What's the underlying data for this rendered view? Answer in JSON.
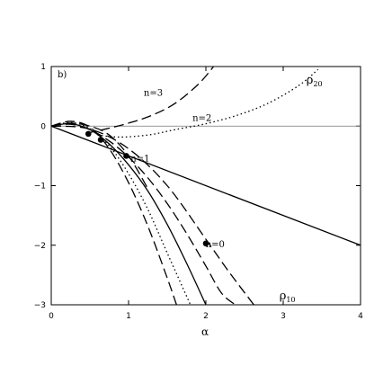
{
  "chart_data": {
    "type": "line",
    "panel_label": "b)",
    "xlabel": "α",
    "ylabel": "",
    "xlim": [
      0,
      4
    ],
    "ylim": [
      -3,
      1
    ],
    "x_ticks": [
      0,
      1,
      2,
      3,
      4
    ],
    "y_ticks": [
      1,
      0,
      -1,
      -2,
      -3
    ],
    "grid": false,
    "annotations": [
      {
        "text": "n=3",
        "x": 1.32,
        "y": 0.57
      },
      {
        "text": "n=2",
        "x": 1.95,
        "y": 0.15
      },
      {
        "text": "n=1",
        "x": 1.15,
        "y": -0.53
      },
      {
        "text": "n=0",
        "x": 2.12,
        "y": -1.97
      }
    ],
    "region_labels": [
      {
        "main": "ρ",
        "sub": "20",
        "x": 3.3,
        "y": 0.77
      },
      {
        "main": "ρ",
        "sub": "10",
        "x": 2.95,
        "y": -2.85
      }
    ],
    "markers": [
      {
        "x": 0.48,
        "y": -0.13
      },
      {
        "x": 0.64,
        "y": -0.23
      },
      {
        "x": 0.97,
        "y": -0.5
      },
      {
        "x": 2.0,
        "y": -1.97
      }
    ],
    "series": [
      {
        "style": "solid",
        "x": [
          0,
          4
        ],
        "y": [
          0,
          -2
        ]
      },
      {
        "style": "solid",
        "x": [
          0,
          0.25,
          0.5,
          0.75,
          1.0,
          1.25,
          1.5,
          1.75,
          2.0
        ],
        "y": [
          0,
          0.04,
          -0.06,
          -0.3,
          -0.65,
          -1.09,
          -1.65,
          -2.3,
          -3.0
        ]
      },
      {
        "style": "dotted",
        "x": [
          0,
          0.25,
          0.5,
          0.75,
          1.0,
          1.25,
          1.5,
          1.8
        ],
        "y": [
          0,
          0.06,
          -0.04,
          -0.33,
          -0.8,
          -1.4,
          -2.13,
          -3.0
        ]
      },
      {
        "style": "dashed",
        "x": [
          0,
          0.25,
          0.5,
          0.75,
          1.0,
          1.25,
          1.5,
          1.62
        ],
        "y": [
          0,
          0.08,
          -0.02,
          -0.38,
          -0.95,
          -1.68,
          -2.55,
          -3.0
        ]
      },
      {
        "style": "dashed",
        "x": [
          0,
          0.25,
          0.5,
          0.75,
          1.0,
          1.25,
          1.5,
          1.75,
          2.0,
          2.2,
          2.38
        ],
        "y": [
          0,
          0.03,
          -0.06,
          -0.25,
          -0.52,
          -0.87,
          -1.3,
          -1.8,
          -2.35,
          -2.8,
          -3.0
        ]
      },
      {
        "style": "dashed",
        "x": [
          0,
          0.5,
          1.0,
          1.5,
          2.0,
          2.3,
          2.62
        ],
        "y": [
          0,
          -0.05,
          -0.38,
          -1.0,
          -1.9,
          -2.45,
          -3.0
        ]
      },
      {
        "style": "dashed",
        "x": [
          0,
          0.25,
          0.5,
          0.75,
          1.0,
          1.25
        ],
        "y": [
          0,
          0.05,
          0.0,
          -0.15,
          -0.5,
          -1.05
        ]
      },
      {
        "style": "dashed",
        "x": [
          0.45,
          0.7,
          1.0,
          1.3,
          1.6,
          1.9,
          2.1
        ],
        "y": [
          -0.12,
          -0.05,
          0.05,
          0.18,
          0.38,
          0.7,
          1.0
        ]
      },
      {
        "style": "dotted",
        "x": [
          0.6,
          0.8,
          1.0,
          1.3,
          1.6,
          2.0,
          2.4,
          2.8,
          3.2,
          3.45
        ],
        "y": [
          -0.15,
          -0.18,
          -0.18,
          -0.14,
          -0.06,
          0.04,
          0.18,
          0.38,
          0.68,
          0.95
        ]
      }
    ]
  }
}
